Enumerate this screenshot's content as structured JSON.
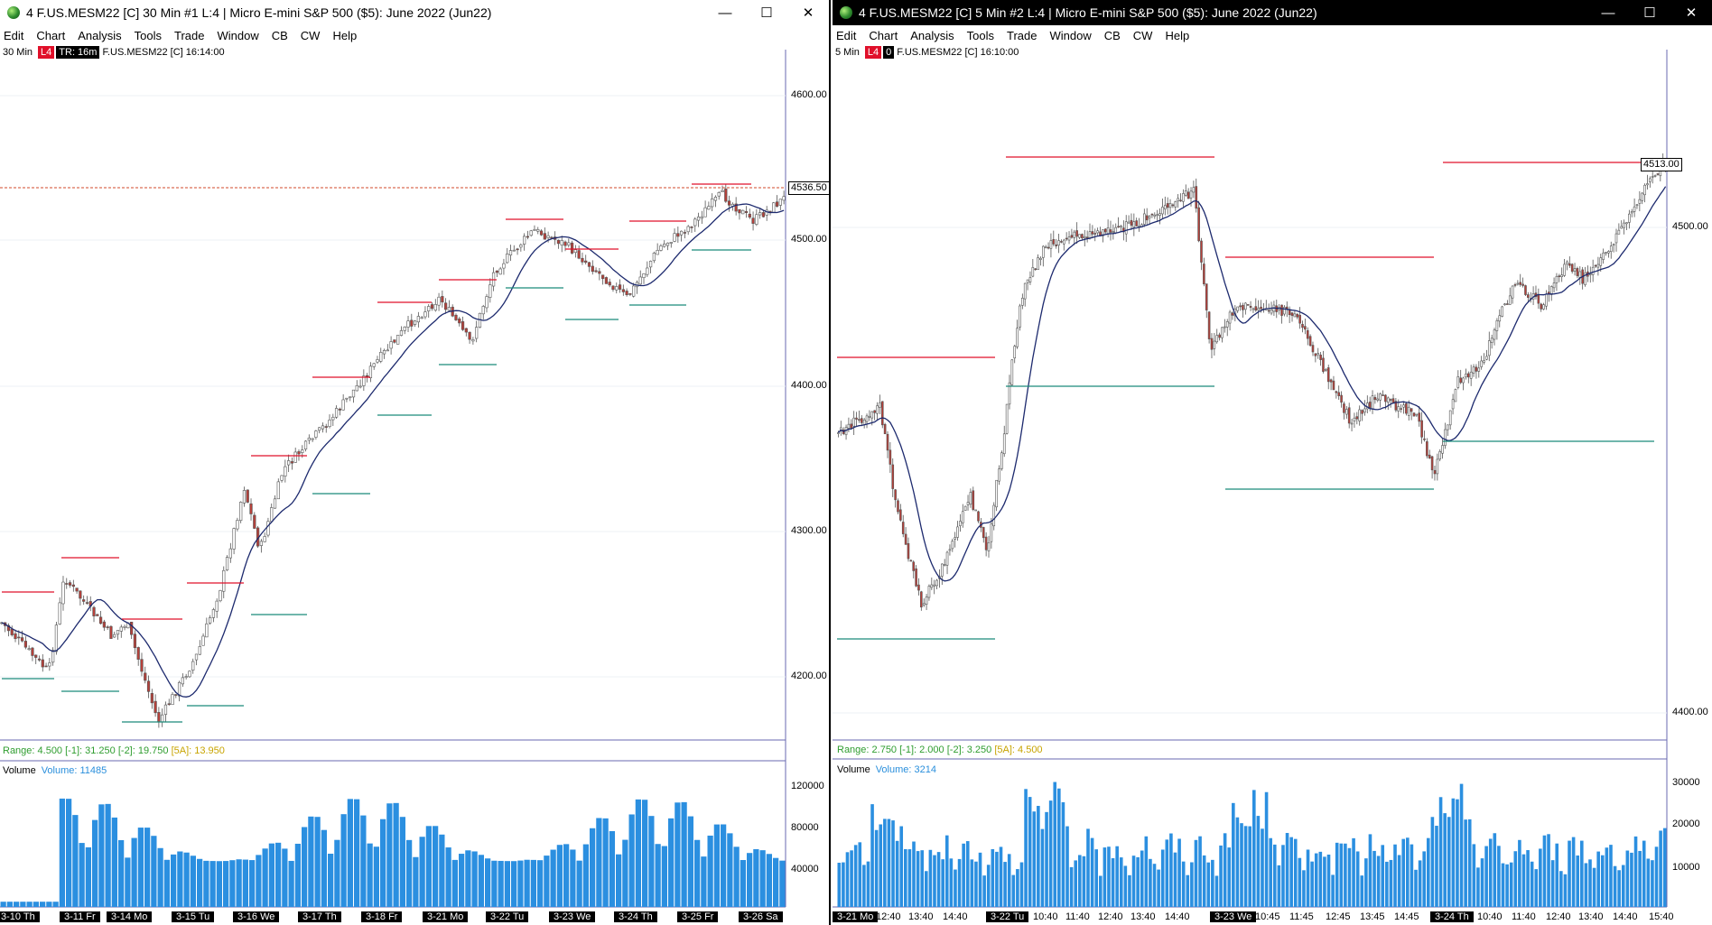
{
  "left": {
    "title": "4 F.US.MESM22 [C]  30 Min   #1 L:4 | Micro E-mini S&P 500 ($5): June 2022 (Jun22)",
    "menu": [
      "Edit",
      "Chart",
      "Analysis",
      "Tools",
      "Trade",
      "Window",
      "CB",
      "CW",
      "Help"
    ],
    "interval": "30 Min",
    "badge_l4": "L4",
    "badge_tr": "TR: 16m",
    "symbol_info": "F.US.MESM22 [C] 16:14:00",
    "price_ticks": [
      "4600.00",
      "4500.00",
      "4400.00",
      "4300.00",
      "4200.00"
    ],
    "last_price": "4536.50",
    "range_label": "Range: 4.500",
    "range_1": "[-1]: 31.250",
    "range_2": "[-2]: 19.750",
    "range_5a": "[5A]: 13.950",
    "volume_label": "Volume",
    "volume_value": "Volume: 11485",
    "volume_ticks": [
      "120000",
      "80000",
      "40000"
    ],
    "date_labels": [
      "3-10 Th",
      "3-11 Fr",
      "3-14 Mo",
      "3-15 Tu",
      "3-16 We",
      "3-17 Th",
      "3-18 Fr",
      "3-21 Mo",
      "3-22 Tu",
      "3-23 We",
      "3-24 Th",
      "3-25 Fr",
      "3-26 Sa"
    ]
  },
  "right": {
    "title": "4 F.US.MESM22 [C]  5 Min   #2 L:4 | Micro E-mini S&P 500 ($5): June 2022 (Jun22)",
    "menu": [
      "Edit",
      "Chart",
      "Analysis",
      "Tools",
      "Trade",
      "Window",
      "CB",
      "CW",
      "Help"
    ],
    "interval": "5 Min",
    "badge_l4": "L4",
    "badge_tr": "0",
    "symbol_info": "F.US.MESM22 [C] 16:10:00",
    "price_ticks": [
      "4500.00",
      "4400.00"
    ],
    "last_price": "4513.00",
    "range_label": "Range: 2.750",
    "range_1": "[-1]: 2.000",
    "range_2": "[-2]: 3.250",
    "range_5a": "[5A]: 4.500",
    "volume_label": "Volume",
    "volume_value": "Volume: 3214",
    "volume_ticks": [
      "30000",
      "20000",
      "10000"
    ],
    "date_labels": [
      "3-21 Mo",
      "12:40",
      "13:40",
      "14:40",
      "3-22 Tu",
      "10:40",
      "11:40",
      "12:40",
      "13:40",
      "14:40",
      "3-23 We",
      "10:45",
      "11:45",
      "12:45",
      "13:45",
      "14:45",
      "3-24 Th",
      "10:40",
      "11:40",
      "12:40",
      "13:40",
      "14:40",
      "15:40"
    ]
  },
  "colors": {
    "up": "#ffffff",
    "down": "#b5403a",
    "ma": "#1d2a6e",
    "hi_line": "#e0102a",
    "lo_line": "#1a8a7a",
    "volume": "#2b8fe0"
  }
}
